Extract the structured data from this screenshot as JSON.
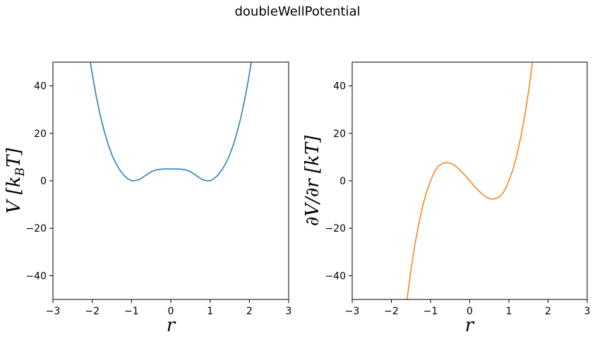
{
  "figure": {
    "title": "doubleWellPotential"
  },
  "chart_data": [
    {
      "type": "line",
      "name": "potential",
      "xlabel": "r",
      "ylabel": "V [k_BT]",
      "ylabel_main": "V [k",
      "ylabel_sub": "B",
      "ylabel_tail": "T]",
      "xlim": [
        -3,
        3
      ],
      "ylim": [
        -50,
        50
      ],
      "xticks": [
        -3,
        -2,
        -1,
        0,
        1,
        2,
        3
      ],
      "xtick_labels": [
        "−3",
        "−2",
        "−1",
        "0",
        "1",
        "2",
        "3"
      ],
      "yticks": [
        -40,
        -20,
        0,
        20,
        40
      ],
      "ytick_labels": [
        "−40",
        "−20",
        "0",
        "20",
        "40"
      ],
      "grid": false,
      "color": "#1f77b4",
      "series": [
        {
          "x": [
            -2.1,
            -2.0,
            -1.9,
            -1.8,
            -1.7,
            -1.6,
            -1.5,
            -1.4,
            -1.3,
            -1.2,
            -1.1,
            -1.0,
            -0.9,
            -0.8,
            -0.7,
            -0.6,
            -0.5,
            -0.4,
            -0.3,
            -0.2,
            -0.1,
            0.0,
            0.1,
            0.2,
            0.3,
            0.4,
            0.5,
            0.6,
            0.7,
            0.8,
            0.9,
            1.0,
            1.1,
            1.2,
            1.3,
            1.4,
            1.5,
            1.6,
            1.7,
            1.8,
            1.9,
            2.0,
            2.1
          ],
          "y": [
            55.59,
            45.0,
            35.8,
            27.9,
            21.2,
            15.6,
            11.0,
            7.4,
            4.6,
            2.4,
            0.9,
            0.0,
            0.1,
            0.5,
            1.6,
            2.8,
            3.8,
            4.5,
            4.8,
            5.0,
            5.0,
            5.0,
            5.0,
            5.0,
            4.8,
            4.5,
            3.8,
            2.8,
            1.6,
            0.5,
            0.1,
            0.0,
            0.9,
            2.4,
            4.6,
            7.4,
            11.0,
            15.6,
            21.2,
            27.9,
            35.8,
            45.0,
            55.59
          ]
        }
      ]
    },
    {
      "type": "line",
      "name": "force",
      "xlabel": "r",
      "ylabel": "∂V/∂r [kT]",
      "xlim": [
        -3,
        3
      ],
      "ylim": [
        -50,
        50
      ],
      "xticks": [
        -3,
        -2,
        -1,
        0,
        1,
        2,
        3
      ],
      "xtick_labels": [
        "−3",
        "−2",
        "−1",
        "0",
        "1",
        "2",
        "3"
      ],
      "yticks": [
        -40,
        -20,
        0,
        20,
        40
      ],
      "ytick_labels": [
        "−40",
        "−20",
        "0",
        "20",
        "40"
      ],
      "grid": false,
      "color": "#ff7f0e",
      "series": [
        {
          "x": [
            -1.65,
            -1.6,
            -1.5,
            -1.4,
            -1.3,
            -1.2,
            -1.1,
            -1.0,
            -0.9,
            -0.8,
            -0.7,
            -0.6,
            -0.5,
            -0.4,
            -0.3,
            -0.2,
            -0.1,
            0.0,
            0.1,
            0.2,
            0.3,
            0.4,
            0.5,
            0.6,
            0.7,
            0.8,
            0.9,
            1.0,
            1.1,
            1.2,
            1.3,
            1.4,
            1.5,
            1.6,
            1.65
          ],
          "y": [
            -56.3,
            -49.9,
            -37.5,
            -26.9,
            -18.1,
            -10.6,
            -4.6,
            0.0,
            3.8,
            6.2,
            7.3,
            7.7,
            7.5,
            6.7,
            5.3,
            3.7,
            1.9,
            0.0,
            -1.9,
            -3.7,
            -5.3,
            -6.7,
            -7.5,
            -7.7,
            -7.3,
            -6.2,
            -3.8,
            0.0,
            4.6,
            10.6,
            18.1,
            26.9,
            37.5,
            49.9,
            56.3
          ]
        }
      ]
    }
  ]
}
